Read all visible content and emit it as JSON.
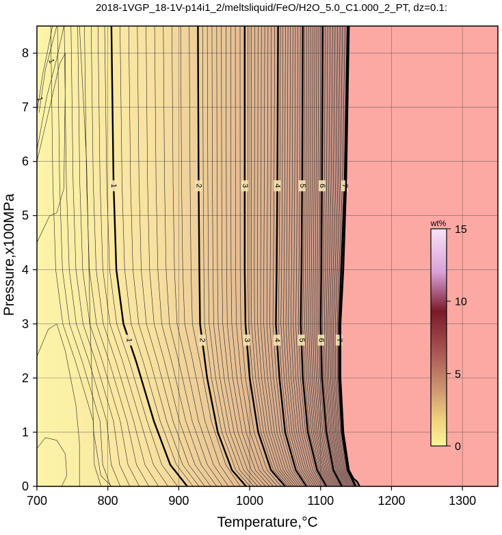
{
  "chart_data": {
    "type": "heatmap",
    "title": "2018-1VGP_18-1V-p14i1_2/meltsliquid/FeO/H2O_5.0_C1.000_2_PT, dz=0.1:",
    "xlabel": "Temperature,°C",
    "ylabel": "Pressure,x100MPa",
    "xlim": [
      700,
      1350
    ],
    "ylim": [
      0,
      8.5
    ],
    "x_ticks": [
      "700",
      "800",
      "900",
      "1000",
      "1100",
      "1200",
      "1300"
    ],
    "y_ticks": [
      "0",
      "1",
      "2",
      "3",
      "4",
      "5",
      "6",
      "7",
      "8"
    ],
    "grid": true,
    "no_melt_color": "#fca8a3",
    "low_value_color": "#fdf4a8",
    "colorbar": {
      "title": "wt%",
      "range": [
        0,
        15
      ],
      "ticks": [
        "0",
        "5",
        "10",
        "15"
      ],
      "colors": [
        "#fbf59a",
        "#efd27e",
        "#d19a72",
        "#a45050",
        "#7a1a2a",
        "#d9a0d8",
        "#f7e4f7"
      ]
    },
    "contour_interval": 0.1,
    "labeled_contours": [
      {
        "value": "1",
        "points": [
          [
            805,
            8.5
          ],
          [
            808,
            5.6
          ],
          [
            812,
            4.0
          ],
          [
            822,
            3.0
          ],
          [
            840,
            2.3
          ],
          [
            865,
            1.2
          ],
          [
            888,
            0.4
          ],
          [
            912,
            0.0
          ]
        ]
      },
      {
        "value": "2",
        "points": [
          [
            927,
            8.5
          ],
          [
            928,
            5.6
          ],
          [
            929,
            4.0
          ],
          [
            930,
            3.0
          ],
          [
            940,
            2.0
          ],
          [
            955,
            1.0
          ],
          [
            975,
            0.3
          ],
          [
            995,
            0.0
          ]
        ]
      },
      {
        "value": "3",
        "points": [
          [
            993,
            8.5
          ],
          [
            993,
            5.6
          ],
          [
            993,
            4.0
          ],
          [
            994,
            3.0
          ],
          [
            1000,
            2.0
          ],
          [
            1012,
            1.0
          ],
          [
            1030,
            0.3
          ],
          [
            1050,
            0.0
          ]
        ]
      },
      {
        "value": "4",
        "points": [
          [
            1040,
            8.5
          ],
          [
            1039,
            5.6
          ],
          [
            1038,
            4.0
          ],
          [
            1037,
            3.0
          ],
          [
            1042,
            2.0
          ],
          [
            1050,
            1.0
          ],
          [
            1065,
            0.3
          ],
          [
            1080,
            0.0
          ]
        ]
      },
      {
        "value": "5",
        "points": [
          [
            1075,
            8.5
          ],
          [
            1074,
            5.6
          ],
          [
            1073,
            4.0
          ],
          [
            1072,
            3.0
          ],
          [
            1075,
            2.0
          ],
          [
            1082,
            1.0
          ],
          [
            1095,
            0.3
          ],
          [
            1108,
            0.0
          ]
        ]
      },
      {
        "value": "6",
        "points": [
          [
            1103,
            8.5
          ],
          [
            1102,
            5.6
          ],
          [
            1101,
            4.0
          ],
          [
            1100,
            3.0
          ],
          [
            1102,
            2.0
          ],
          [
            1108,
            1.0
          ],
          [
            1118,
            0.3
          ],
          [
            1130,
            0.0
          ]
        ]
      },
      {
        "value": "7",
        "points": [
          [
            1138,
            8.5
          ],
          [
            1134,
            5.6
          ],
          [
            1129,
            4.0
          ],
          [
            1126,
            3.0
          ],
          [
            1126,
            2.0
          ],
          [
            1130,
            1.0
          ],
          [
            1138,
            0.3
          ],
          [
            1150,
            0.0
          ]
        ]
      }
    ],
    "solidus_boundary": [
      [
        1140,
        8.5
      ],
      [
        1136,
        5.6
      ],
      [
        1132,
        4.0
      ],
      [
        1128,
        3.0
      ],
      [
        1128,
        2.0
      ],
      [
        1132,
        1.0
      ],
      [
        1140,
        0.3
      ],
      [
        1146,
        0.15
      ],
      [
        1152,
        0.08
      ],
      [
        1155,
        0.0
      ]
    ],
    "low_contour_labels": [
      {
        "value": "1",
        "at": [
          720,
          7.85
        ]
      },
      {
        "value": "1",
        "at": [
          704,
          7.15
        ]
      }
    ]
  }
}
